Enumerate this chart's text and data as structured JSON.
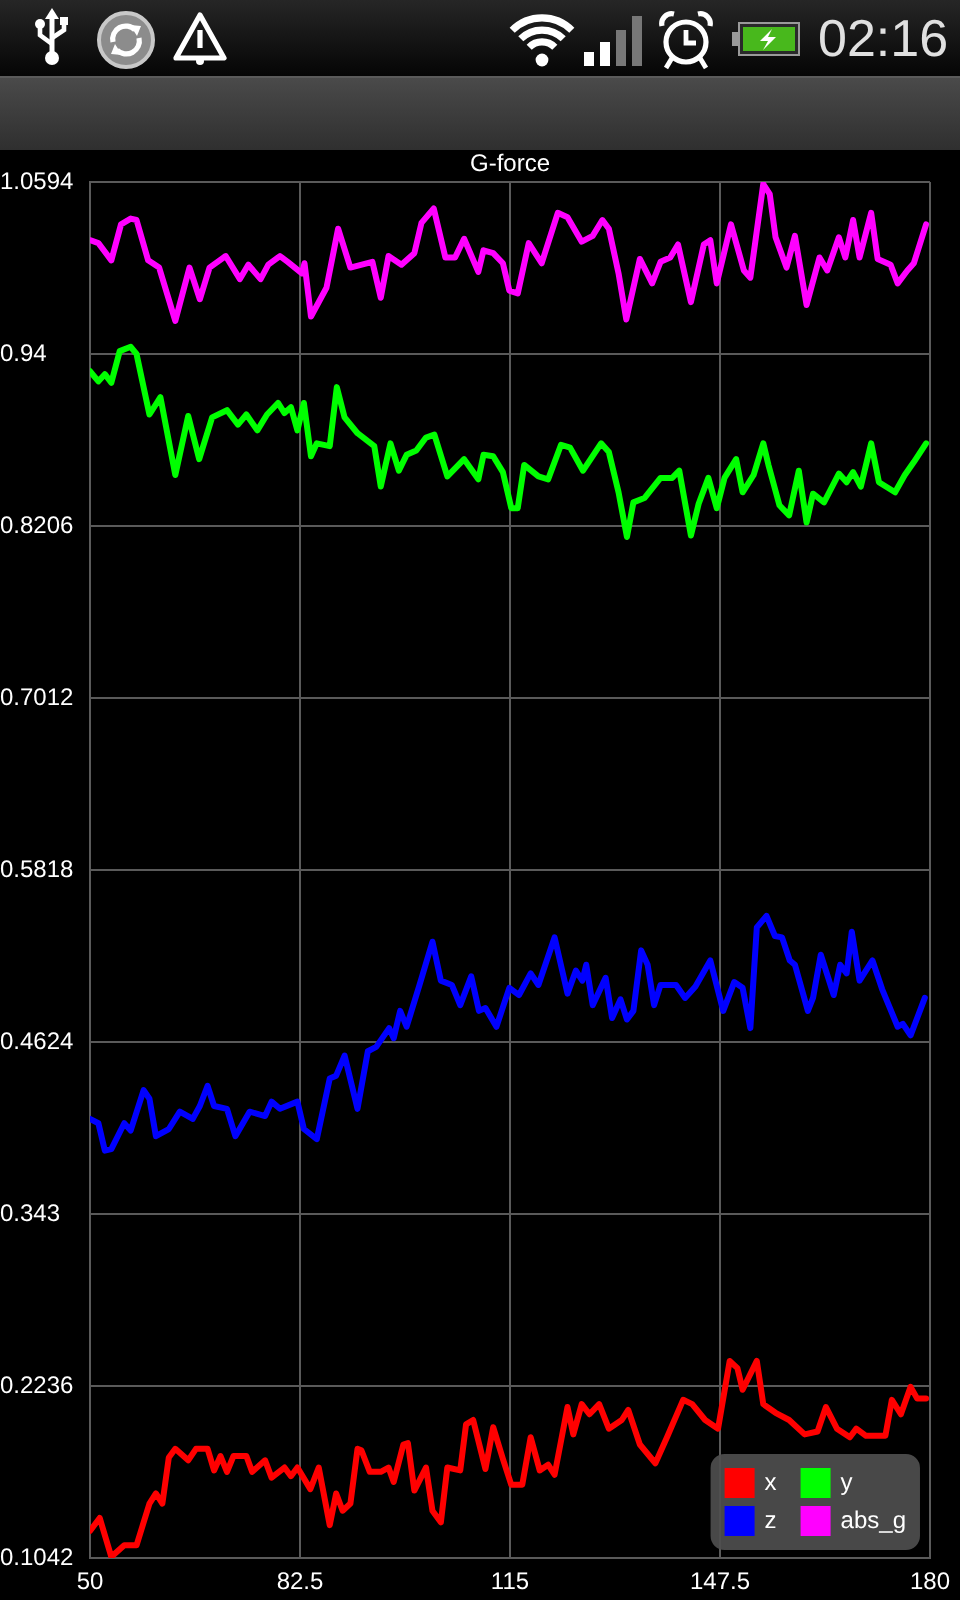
{
  "chart_data": {
    "type": "line",
    "title": "G-force",
    "xlim": [
      50,
      180
    ],
    "xticks": [
      50,
      82.5,
      115,
      147.5,
      180
    ],
    "ylim": [
      0.1042,
      1.0594
    ],
    "yticks": [
      0.1042,
      0.2236,
      0.343,
      0.4624,
      0.5818,
      0.7012,
      0.8206,
      0.94,
      1.0594
    ],
    "grid": true,
    "legend": "bottom right",
    "annotations": [
      "02:16"
    ],
    "series": [
      {
        "name": "x",
        "color": "#ff0000",
        "x": [
          50,
          51.5,
          53.3,
          55.3,
          57.2,
          59.2,
          60.2,
          61.2,
          62.2,
          63.2,
          65.2,
          66.4,
          68.2,
          69.2,
          70.2,
          71.2,
          72.2,
          74.2,
          75.1,
          77.1,
          78.1,
          80.1,
          81.1,
          82.1,
          84.1,
          85.4,
          87.1,
          88.1,
          89.1,
          90.3,
          91.4,
          92,
          93.3,
          95,
          96.2,
          97,
          98.5,
          99.2,
          100.2,
          102,
          103,
          104.3,
          105.3,
          107.3,
          108.2,
          109.3,
          111.2,
          112.4,
          113.9,
          115.2,
          116.9,
          118.2,
          119.6,
          120.9,
          121.9,
          123.9,
          124.8,
          126.1,
          127.3,
          128.8,
          130.3,
          132.3,
          133.3,
          135.1,
          137.5,
          139.3,
          141.8,
          143.2,
          145.2,
          147.2,
          149,
          150.2,
          151,
          153.2,
          154.2,
          156.1,
          158.2,
          160.6,
          162.6,
          163.9,
          165.6,
          167.6,
          168.6,
          170.1,
          173.1,
          174.1,
          175.5,
          177,
          178,
          179.4
        ],
        "values": [
          0.123,
          0.132,
          0.105,
          0.113,
          0.113,
          0.142,
          0.149,
          0.142,
          0.174,
          0.18,
          0.172,
          0.18,
          0.18,
          0.165,
          0.175,
          0.164,
          0.175,
          0.175,
          0.164,
          0.172,
          0.16,
          0.167,
          0.161,
          0.167,
          0.152,
          0.167,
          0.127,
          0.149,
          0.137,
          0.142,
          0.18,
          0.179,
          0.164,
          0.164,
          0.167,
          0.157,
          0.183,
          0.184,
          0.151,
          0.167,
          0.137,
          0.129,
          0.167,
          0.165,
          0.197,
          0.2,
          0.166,
          0.195,
          0.173,
          0.155,
          0.155,
          0.188,
          0.165,
          0.169,
          0.162,
          0.209,
          0.19,
          0.211,
          0.204,
          0.211,
          0.194,
          0.2,
          0.207,
          0.183,
          0.17,
          0.188,
          0.214,
          0.211,
          0.2,
          0.194,
          0.241,
          0.236,
          0.221,
          0.241,
          0.211,
          0.205,
          0.2,
          0.19,
          0.192,
          0.209,
          0.194,
          0.188,
          0.194,
          0.189,
          0.189,
          0.214,
          0.204,
          0.223,
          0.215,
          0.215
        ]
      },
      {
        "name": "y",
        "color": "#00ff00",
        "x": [
          50,
          51.3,
          52.3,
          53.3,
          54.6,
          56.3,
          57.2,
          59.2,
          60.9,
          63.2,
          65.2,
          66.9,
          68.9,
          71.2,
          72.9,
          74.2,
          75.9,
          77.4,
          79.1,
          80.1,
          81.1,
          82.1,
          83.1,
          84.2,
          85.1,
          87.1,
          88.2,
          89.4,
          91.4,
          94,
          95,
          96.5,
          97.8,
          99,
          100.5,
          102,
          103.3,
          105.3,
          107.9,
          110.1,
          110.9,
          112.4,
          113.9,
          115.2,
          116.2,
          117.2,
          119.4,
          120.9,
          122.9,
          124.3,
          126.3,
          129.1,
          130.3,
          131.8,
          133.1,
          134.1,
          135.8,
          138.3,
          140.1,
          141.2,
          143,
          144.2,
          145.7,
          147,
          148.2,
          150,
          151,
          152.7,
          154.2,
          155,
          156.7,
          158.2,
          159.7,
          160.9,
          161.9,
          163.6,
          165.9,
          167.1,
          168.1,
          169.3,
          170.9,
          172.1,
          174.6,
          176.1,
          177.5,
          179.4
        ],
        "values": [
          0.928,
          0.921,
          0.926,
          0.92,
          0.942,
          0.945,
          0.94,
          0.898,
          0.91,
          0.856,
          0.897,
          0.867,
          0.896,
          0.901,
          0.891,
          0.898,
          0.887,
          0.898,
          0.906,
          0.899,
          0.903,
          0.887,
          0.906,
          0.869,
          0.878,
          0.876,
          0.917,
          0.896,
          0.885,
          0.876,
          0.848,
          0.878,
          0.859,
          0.87,
          0.873,
          0.882,
          0.884,
          0.855,
          0.867,
          0.853,
          0.87,
          0.869,
          0.858,
          0.833,
          0.833,
          0.863,
          0.855,
          0.853,
          0.877,
          0.875,
          0.859,
          0.878,
          0.872,
          0.844,
          0.813,
          0.837,
          0.84,
          0.854,
          0.854,
          0.859,
          0.814,
          0.836,
          0.854,
          0.833,
          0.854,
          0.867,
          0.844,
          0.856,
          0.878,
          0.863,
          0.835,
          0.828,
          0.859,
          0.823,
          0.843,
          0.837,
          0.857,
          0.851,
          0.858,
          0.848,
          0.878,
          0.851,
          0.844,
          0.856,
          0.865,
          0.878
        ]
      },
      {
        "name": "z",
        "color": "#0000ff",
        "x": [
          50,
          51.3,
          52.3,
          53.3,
          55.3,
          56.3,
          58.3,
          59.2,
          60.2,
          62.2,
          63.9,
          65.9,
          67,
          68.2,
          69.2,
          71.2,
          72.5,
          74.7,
          77.1,
          78.1,
          79.4,
          82.1,
          83.1,
          85.1,
          87.1,
          88.1,
          89.4,
          91.4,
          93,
          94.3,
          96.3,
          97,
          98,
          99,
          101,
          103,
          104.3,
          106,
          107.3,
          109,
          110.2,
          111.2,
          112.9,
          114.9,
          116.4,
          118.2,
          119.4,
          121.9,
          123.9,
          125.2,
          126.2,
          126.8,
          127.8,
          129.8,
          130.8,
          132.1,
          133.1,
          134.1,
          135.3,
          136.3,
          137.3,
          138.3,
          140.7,
          142.1,
          143.7,
          146,
          148,
          149.7,
          151,
          152.2,
          153.2,
          154.7,
          156,
          157.1,
          158.3,
          159.1,
          161.1,
          161.9,
          163.1,
          165.1,
          166.1,
          167.1,
          167.9,
          169.1,
          171.1,
          172.6,
          175,
          175.8,
          177,
          179.2
        ],
        "values": [
          0.409,
          0.406,
          0.387,
          0.388,
          0.406,
          0.401,
          0.429,
          0.423,
          0.397,
          0.402,
          0.414,
          0.409,
          0.418,
          0.432,
          0.418,
          0.416,
          0.397,
          0.414,
          0.411,
          0.421,
          0.416,
          0.421,
          0.402,
          0.395,
          0.437,
          0.439,
          0.453,
          0.416,
          0.456,
          0.459,
          0.472,
          0.465,
          0.484,
          0.473,
          0.502,
          0.532,
          0.505,
          0.502,
          0.488,
          0.508,
          0.484,
          0.486,
          0.473,
          0.5,
          0.495,
          0.51,
          0.502,
          0.535,
          0.496,
          0.512,
          0.505,
          0.516,
          0.488,
          0.507,
          0.479,
          0.492,
          0.478,
          0.484,
          0.526,
          0.516,
          0.488,
          0.502,
          0.502,
          0.493,
          0.501,
          0.519,
          0.484,
          0.504,
          0.5,
          0.472,
          0.542,
          0.55,
          0.536,
          0.535,
          0.519,
          0.516,
          0.484,
          0.493,
          0.523,
          0.495,
          0.516,
          0.51,
          0.539,
          0.505,
          0.519,
          0.499,
          0.473,
          0.475,
          0.467,
          0.493
        ]
      },
      {
        "name": "abs_g",
        "color": "#ff00ff",
        "x": [
          50,
          51.3,
          53.3,
          54.8,
          56.3,
          57.2,
          59,
          60.7,
          63.2,
          65.4,
          67,
          68.5,
          71,
          73.2,
          74.5,
          76.4,
          77.6,
          79.4,
          80.6,
          82.8,
          83.2,
          84.2,
          86.6,
          88.4,
          90.3,
          93.7,
          95,
          96.2,
          98.2,
          100.2,
          101.3,
          103.2,
          105,
          106.5,
          107.9,
          110.1,
          110.9,
          112.4,
          113.9,
          114.9,
          116.2,
          117.9,
          119.9,
          122.4,
          123.9,
          126.1,
          127.8,
          129.3,
          130.3,
          131.8,
          133,
          135.1,
          137,
          138.3,
          139.8,
          141,
          143,
          145,
          146,
          147,
          149.2,
          151.2,
          152.2,
          154.2,
          155.2,
          156.1,
          157.8,
          159.1,
          160.9,
          162.9,
          164.1,
          165.9,
          166.9,
          168.1,
          169.1,
          170.9,
          171.9,
          173.9,
          175,
          176.5,
          177.5,
          179.4
        ],
        "values": [
          1.019,
          1.017,
          1.005,
          1.03,
          1.034,
          1.033,
          1.005,
          1.0,
          0.963,
          1.0,
          0.978,
          1.0,
          1.008,
          0.992,
          1.002,
          0.992,
          1.002,
          1.008,
          1.004,
          0.996,
          1.003,
          0.966,
          0.986,
          1.027,
          1.0,
          1.004,
          0.979,
          1.008,
          1.002,
          1.01,
          1.031,
          1.041,
          1.007,
          1.007,
          1.02,
          0.997,
          1.012,
          1.01,
          1.003,
          0.984,
          0.982,
          1.017,
          1.003,
          1.038,
          1.035,
          1.018,
          1.022,
          1.033,
          1.027,
          0.996,
          0.964,
          1.006,
          0.989,
          1.004,
          1.007,
          1.016,
          0.976,
          1.016,
          1.019,
          0.989,
          1.03,
          0.998,
          0.993,
          1.058,
          1.051,
          1.021,
          1.0,
          1.022,
          0.974,
          1.007,
          0.998,
          1.021,
          1.007,
          1.033,
          1.007,
          1.038,
          1.006,
          1.002,
          0.989,
          0.998,
          1.003,
          1.03
        ]
      }
    ]
  }
}
